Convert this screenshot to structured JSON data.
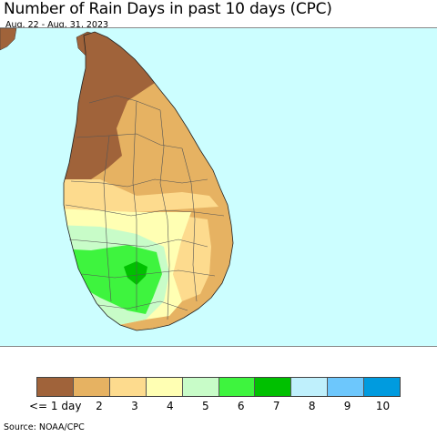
{
  "header": {
    "title": "Number of Rain Days in past 10 days (CPC)",
    "subtitle": "Aug. 22 - Aug. 31, 2023"
  },
  "map": {
    "ocean_color": "#ccfeff",
    "land_background_color": "#e6b262",
    "region": "Sri Lanka"
  },
  "legend": {
    "items": [
      {
        "label": "<= 1 day",
        "color": "#a0633a"
      },
      {
        "label": "2",
        "color": "#e6b262"
      },
      {
        "label": "3",
        "color": "#fddb8e"
      },
      {
        "label": "4",
        "color": "#ffffb3"
      },
      {
        "label": "5",
        "color": "#c8fcc8"
      },
      {
        "label": "6",
        "color": "#3ef43e"
      },
      {
        "label": "7",
        "color": "#00c000"
      },
      {
        "label": "8",
        "color": "#bff0fc"
      },
      {
        "label": "9",
        "color": "#6dc7fc"
      },
      {
        "label": "10",
        "color": "#009bdf"
      }
    ]
  },
  "footer": {
    "source": "Source: NOAA/CPC"
  }
}
